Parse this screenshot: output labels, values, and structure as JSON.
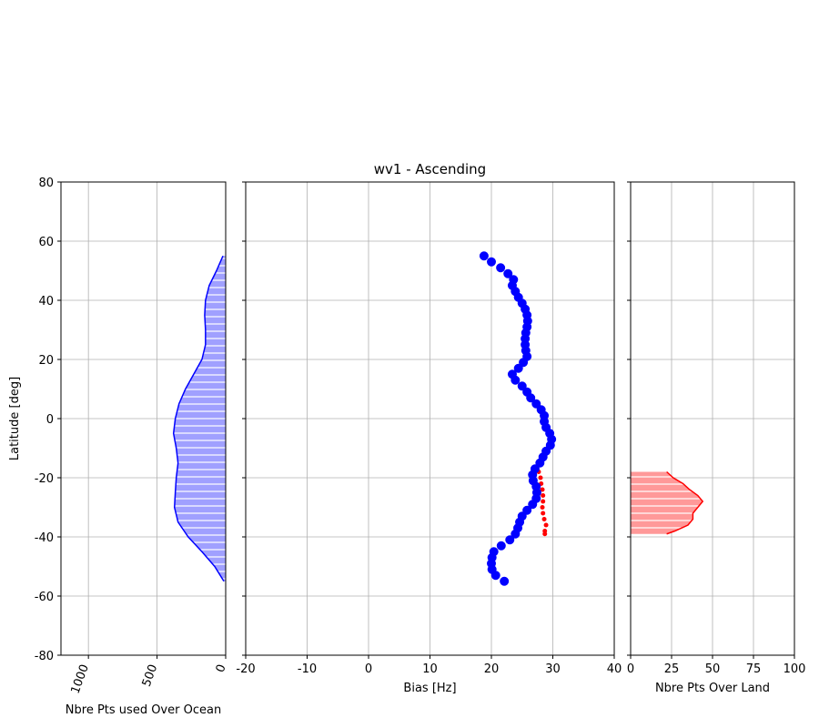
{
  "chart_data": [
    {
      "type": "area",
      "ylabel": "Latitude [deg]",
      "xlabel": "Nbre Pts used Over Ocean",
      "xlim": [
        1200,
        0
      ],
      "xticks": [
        1000,
        500,
        0
      ],
      "ylim": [
        -80,
        80
      ],
      "yticks": [
        -80,
        -60,
        -40,
        -20,
        0,
        20,
        40,
        60,
        80
      ],
      "grid": true,
      "series": [
        {
          "color": "#0000ff",
          "fill": "#a0a0ff",
          "y": [
            55,
            50,
            45,
            40,
            35,
            30,
            25,
            20,
            15,
            10,
            5,
            0,
            -5,
            -10,
            -15,
            -20,
            -25,
            -30,
            -35,
            -40,
            -45,
            -50,
            -55
          ],
          "x": [
            20,
            67,
            120,
            147,
            153,
            147,
            147,
            173,
            233,
            293,
            340,
            367,
            380,
            360,
            347,
            360,
            367,
            373,
            347,
            273,
            173,
            80,
            13
          ]
        }
      ]
    },
    {
      "type": "scatter",
      "title": "wv1 - Ascending",
      "xlabel": "Bias [Hz]",
      "xlim": [
        -20,
        40
      ],
      "xticks": [
        -20,
        -10,
        0,
        10,
        20,
        30,
        40
      ],
      "ylim": [
        -80,
        80
      ],
      "yticks": [
        -80,
        -60,
        -40,
        -20,
        0,
        20,
        40,
        60,
        80
      ],
      "grid": true,
      "series": [
        {
          "color": "#ff0000",
          "y": [
            -18,
            -20,
            -22,
            -24,
            -26,
            -28,
            -30,
            -32,
            -34,
            -36,
            -38,
            -39
          ],
          "x": [
            27.7,
            28.0,
            28.1,
            28.3,
            28.4,
            28.4,
            28.3,
            28.4,
            28.6,
            28.9,
            28.7,
            28.7
          ]
        },
        {
          "color": "#0000ff",
          "y": [
            55,
            53,
            51,
            49,
            47,
            45,
            43,
            41,
            39,
            37,
            35,
            33,
            31,
            29,
            27,
            25,
            23,
            21,
            19,
            17,
            15,
            13,
            11,
            9,
            7,
            5,
            3,
            1,
            -1,
            -3,
            -5,
            -7,
            -9,
            -11,
            -13,
            -15,
            -17,
            -19,
            -21,
            -23,
            -25,
            -27,
            -29,
            -31,
            -33,
            -35,
            -37,
            -39,
            -41,
            -43,
            -45,
            -47,
            -49,
            -51,
            -53,
            -55
          ],
          "x": [
            18.8,
            20.0,
            21.5,
            22.7,
            23.6,
            23.4,
            23.9,
            24.4,
            25.0,
            25.5,
            25.8,
            25.9,
            25.8,
            25.6,
            25.5,
            25.5,
            25.6,
            25.8,
            25.2,
            24.4,
            23.4,
            23.9,
            25.0,
            25.8,
            26.4,
            27.3,
            28.1,
            28.6,
            28.6,
            28.9,
            29.5,
            29.8,
            29.6,
            28.9,
            28.4,
            27.9,
            27.1,
            26.7,
            26.8,
            27.3,
            27.4,
            27.3,
            26.7,
            25.8,
            25.0,
            24.6,
            24.3,
            23.9,
            23.0,
            21.6,
            20.4,
            20.1,
            20.0,
            20.1,
            20.7,
            22.1
          ]
        }
      ]
    },
    {
      "type": "area",
      "xlabel": "Nbre Pts Over Land",
      "xlim": [
        0,
        100
      ],
      "xticks": [
        0,
        25,
        50,
        75,
        100
      ],
      "ylim": [
        -80,
        80
      ],
      "yticks": [
        -80,
        -60,
        -40,
        -20,
        0,
        20,
        40,
        60,
        80
      ],
      "grid": true,
      "series": [
        {
          "color": "#ff0000",
          "fill": "#ff9999",
          "y": [
            -18,
            -20,
            -22,
            -24,
            -26,
            -28,
            -30,
            -32,
            -34,
            -36,
            -38,
            -39
          ],
          "x": [
            22,
            26,
            32,
            36,
            41,
            44,
            41,
            38,
            38,
            35,
            27,
            22
          ]
        }
      ]
    }
  ]
}
